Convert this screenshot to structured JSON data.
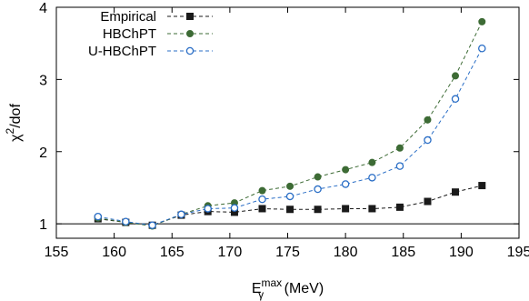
{
  "chart_data": {
    "type": "line",
    "xlabel": "E",
    "xlabel_sub": "γ",
    "xlabel_sup": "max",
    "xlabel_unit": "(MeV)",
    "ylabel": "χ",
    "ylabel_sup": "2",
    "ylabel_rest": "/dof",
    "xlim": [
      155,
      195
    ],
    "ylim": [
      0.8,
      4
    ],
    "xticks": [
      155,
      160,
      165,
      170,
      175,
      180,
      185,
      190,
      195
    ],
    "yticks": [
      1,
      2,
      3,
      4
    ],
    "reference_line_y": 1,
    "legend_position": "top-left",
    "x": [
      158.6,
      161.0,
      163.3,
      165.8,
      168.1,
      170.4,
      172.8,
      175.2,
      177.6,
      180.0,
      182.3,
      184.7,
      187.1,
      189.5,
      191.8
    ],
    "series": [
      {
        "name": "Empirical",
        "color": "#1a1a1a",
        "marker": "filled-square",
        "values": [
          1.07,
          1.02,
          0.98,
          1.12,
          1.17,
          1.16,
          1.21,
          1.2,
          1.2,
          1.21,
          1.21,
          1.23,
          1.31,
          1.44,
          1.53
        ]
      },
      {
        "name": "HBChPT",
        "color": "#3d6b35",
        "marker": "filled-circle",
        "values": [
          1.08,
          1.02,
          0.97,
          1.13,
          1.25,
          1.29,
          1.46,
          1.52,
          1.65,
          1.75,
          1.85,
          2.05,
          2.44,
          3.05,
          3.8
        ]
      },
      {
        "name": "U-HBChPT",
        "color": "#2a6ec6",
        "marker": "open-circle",
        "values": [
          1.1,
          1.03,
          0.98,
          1.13,
          1.21,
          1.22,
          1.34,
          1.38,
          1.48,
          1.55,
          1.64,
          1.8,
          2.16,
          2.73,
          3.43
        ]
      }
    ]
  }
}
